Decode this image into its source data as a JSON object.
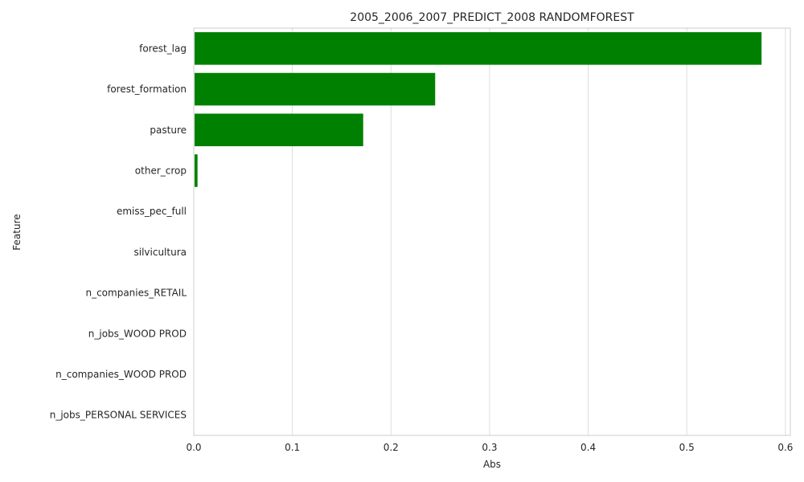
{
  "chart_data": {
    "type": "bar",
    "orientation": "horizontal",
    "title": "2005_2006_2007_PREDICT_2008 RANDOMFOREST",
    "xlabel": "Abs",
    "ylabel": "Feature",
    "categories": [
      "forest_lag",
      "forest_formation",
      "pasture",
      "other_crop",
      "emiss_pec_full",
      "silvicultura",
      "n_companies_RETAIL",
      "n_jobs_WOOD PROD",
      "n_companies_WOOD PROD",
      "n_jobs_PERSONAL SERVICES"
    ],
    "values": [
      0.575,
      0.244,
      0.171,
      0.003,
      0.0,
      0.0,
      0.0,
      0.0,
      0.0,
      0.0
    ],
    "xlim": [
      0,
      0.605
    ],
    "xticks": [
      "0.0",
      "0.1",
      "0.2",
      "0.3",
      "0.4",
      "0.5",
      "0.6"
    ],
    "xtick_values": [
      0,
      0.1,
      0.2,
      0.3,
      0.4,
      0.5,
      0.6
    ],
    "grid": "vertical",
    "bar_color": "#008000"
  }
}
